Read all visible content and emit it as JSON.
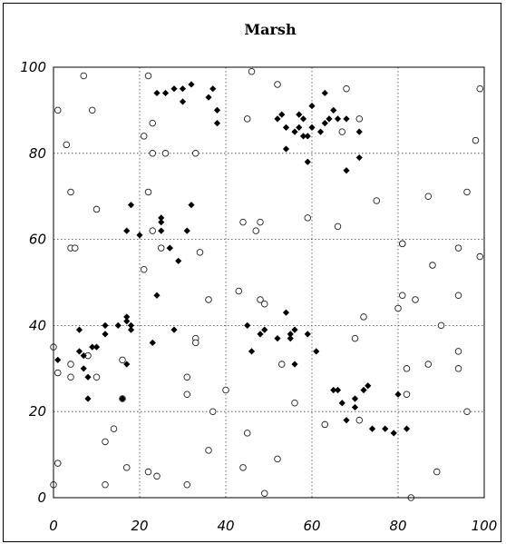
{
  "chart_data": {
    "type": "scatter",
    "title": "Marsh",
    "xlabel": "",
    "ylabel": "",
    "xlim": [
      0,
      100
    ],
    "ylim": [
      0,
      100
    ],
    "xticks": [
      0,
      20,
      40,
      60,
      80,
      100
    ],
    "yticks": [
      0,
      20,
      40,
      60,
      80,
      100
    ],
    "grid": true,
    "legend": "none",
    "series": [
      {
        "marker": "open-circle",
        "color": "#000000",
        "points": [
          [
            1,
            90
          ],
          [
            3,
            82
          ],
          [
            7,
            98
          ],
          [
            9,
            90
          ],
          [
            10,
            67
          ],
          [
            4,
            71
          ],
          [
            4,
            58
          ],
          [
            5,
            58
          ],
          [
            0,
            35
          ],
          [
            1,
            29
          ],
          [
            4,
            31
          ],
          [
            4,
            28
          ],
          [
            8,
            33
          ],
          [
            10,
            28
          ],
          [
            1,
            8
          ],
          [
            0,
            3
          ],
          [
            12,
            13
          ],
          [
            12,
            3
          ],
          [
            14,
            16
          ],
          [
            16,
            32
          ],
          [
            16,
            23
          ],
          [
            17,
            7
          ],
          [
            21,
            84
          ],
          [
            22,
            98
          ],
          [
            23,
            87
          ],
          [
            23,
            80
          ],
          [
            26,
            80
          ],
          [
            22,
            71
          ],
          [
            23,
            62
          ],
          [
            25,
            58
          ],
          [
            21,
            53
          ],
          [
            31,
            28
          ],
          [
            33,
            80
          ],
          [
            34,
            57
          ],
          [
            33,
            37
          ],
          [
            33,
            36
          ],
          [
            36,
            46
          ],
          [
            36,
            11
          ],
          [
            37,
            20
          ],
          [
            31,
            24
          ],
          [
            22,
            6
          ],
          [
            24,
            5
          ],
          [
            31,
            3
          ],
          [
            40,
            25
          ],
          [
            43,
            48
          ],
          [
            44,
            64
          ],
          [
            45,
            88
          ],
          [
            46,
            99
          ],
          [
            47,
            62
          ],
          [
            48,
            64
          ],
          [
            48,
            46
          ],
          [
            49,
            45
          ],
          [
            45,
            15
          ],
          [
            44,
            7
          ],
          [
            49,
            1
          ],
          [
            52,
            96
          ],
          [
            53,
            31
          ],
          [
            52,
            9
          ],
          [
            56,
            22
          ],
          [
            59,
            65
          ],
          [
            66,
            63
          ],
          [
            67,
            85
          ],
          [
            68,
            95
          ],
          [
            71,
            88
          ],
          [
            75,
            69
          ],
          [
            70,
            37
          ],
          [
            72,
            42
          ],
          [
            71,
            18
          ],
          [
            63,
            17
          ],
          [
            80,
            44
          ],
          [
            81,
            59
          ],
          [
            81,
            59
          ],
          [
            81,
            47
          ],
          [
            82,
            24
          ],
          [
            82,
            30
          ],
          [
            83,
            0
          ],
          [
            84,
            46
          ],
          [
            87,
            70
          ],
          [
            88,
            54
          ],
          [
            87,
            31
          ],
          [
            90,
            40
          ],
          [
            89,
            6
          ],
          [
            94,
            58
          ],
          [
            94,
            47
          ],
          [
            94,
            34
          ],
          [
            94,
            30
          ],
          [
            96,
            71
          ],
          [
            96,
            20
          ],
          [
            98,
            83
          ],
          [
            99,
            56
          ],
          [
            99,
            95
          ]
        ]
      },
      {
        "marker": "filled-diamond",
        "color": "#000000",
        "points": [
          [
            1,
            32
          ],
          [
            6,
            39
          ],
          [
            6,
            34
          ],
          [
            7,
            33
          ],
          [
            7,
            30
          ],
          [
            8,
            28
          ],
          [
            8,
            23
          ],
          [
            9,
            35
          ],
          [
            10,
            35
          ],
          [
            12,
            40
          ],
          [
            12,
            38
          ],
          [
            15,
            40
          ],
          [
            16,
            23
          ],
          [
            17,
            31
          ],
          [
            17,
            42
          ],
          [
            17,
            41
          ],
          [
            18,
            40
          ],
          [
            18,
            39
          ],
          [
            17,
            62
          ],
          [
            18,
            68
          ],
          [
            20,
            61
          ],
          [
            24,
            47
          ],
          [
            24,
            94
          ],
          [
            25,
            65
          ],
          [
            25,
            64
          ],
          [
            25,
            62
          ],
          [
            26,
            94
          ],
          [
            27,
            58
          ],
          [
            27,
            58
          ],
          [
            28,
            39
          ],
          [
            28,
            95
          ],
          [
            29,
            55
          ],
          [
            30,
            92
          ],
          [
            30,
            95
          ],
          [
            31,
            62
          ],
          [
            32,
            96
          ],
          [
            32,
            68
          ],
          [
            23,
            36
          ],
          [
            36,
            93
          ],
          [
            37,
            95
          ],
          [
            38,
            90
          ],
          [
            38,
            87
          ],
          [
            45,
            40
          ],
          [
            46,
            34
          ],
          [
            48,
            38
          ],
          [
            49,
            39
          ],
          [
            52,
            37
          ],
          [
            52,
            88
          ],
          [
            53,
            89
          ],
          [
            54,
            86
          ],
          [
            54,
            81
          ],
          [
            54,
            43
          ],
          [
            55,
            38
          ],
          [
            55,
            37
          ],
          [
            56,
            39
          ],
          [
            56,
            31
          ],
          [
            56,
            85
          ],
          [
            57,
            89
          ],
          [
            57,
            86
          ],
          [
            58,
            88
          ],
          [
            58,
            84
          ],
          [
            59,
            84
          ],
          [
            59,
            38
          ],
          [
            59,
            78
          ],
          [
            60,
            91
          ],
          [
            60,
            86
          ],
          [
            61,
            34
          ],
          [
            62,
            85
          ],
          [
            63,
            87
          ],
          [
            63,
            94
          ],
          [
            64,
            88
          ],
          [
            65,
            90
          ],
          [
            65,
            25
          ],
          [
            66,
            88
          ],
          [
            66,
            25
          ],
          [
            67,
            22
          ],
          [
            68,
            88
          ],
          [
            68,
            18
          ],
          [
            68,
            76
          ],
          [
            70,
            23
          ],
          [
            70,
            21
          ],
          [
            71,
            85
          ],
          [
            71,
            79
          ],
          [
            72,
            25
          ],
          [
            73,
            26
          ],
          [
            74,
            16
          ],
          [
            77,
            16
          ],
          [
            79,
            15
          ],
          [
            80,
            24
          ],
          [
            82,
            16
          ]
        ]
      }
    ]
  }
}
